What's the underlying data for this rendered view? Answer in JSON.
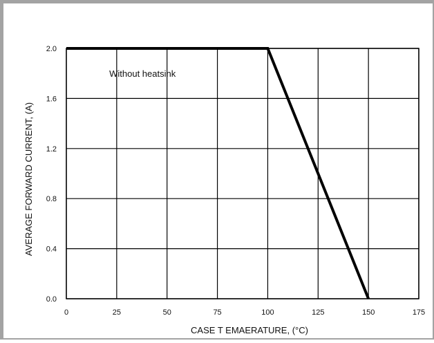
{
  "chart_data": {
    "type": "line",
    "xlabel": "CASE T EMAERATURE, (°C)",
    "ylabel": "AVERAGE FORWARD CURRENT, (A)",
    "xlim": [
      0,
      175
    ],
    "ylim": [
      0,
      2.0
    ],
    "x_ticks": [
      0,
      25,
      50,
      75,
      100,
      125,
      150,
      175
    ],
    "x_tick_labels": [
      "0",
      "25",
      "50",
      "75",
      "100",
      "125",
      "150",
      "175"
    ],
    "y_ticks": [
      0,
      0.4,
      0.8,
      1.2,
      1.6,
      2.0
    ],
    "y_tick_labels": [
      "0.0",
      "0.4",
      "0.8",
      "1.2",
      "1.6",
      "2.0"
    ],
    "grid": true,
    "series": [
      {
        "x": [
          0,
          100,
          150
        ],
        "y": [
          2.0,
          2.0,
          0.0
        ]
      }
    ],
    "annotations": [
      {
        "text": "Without heatsink",
        "x": 22,
        "y": 1.8
      }
    ]
  }
}
